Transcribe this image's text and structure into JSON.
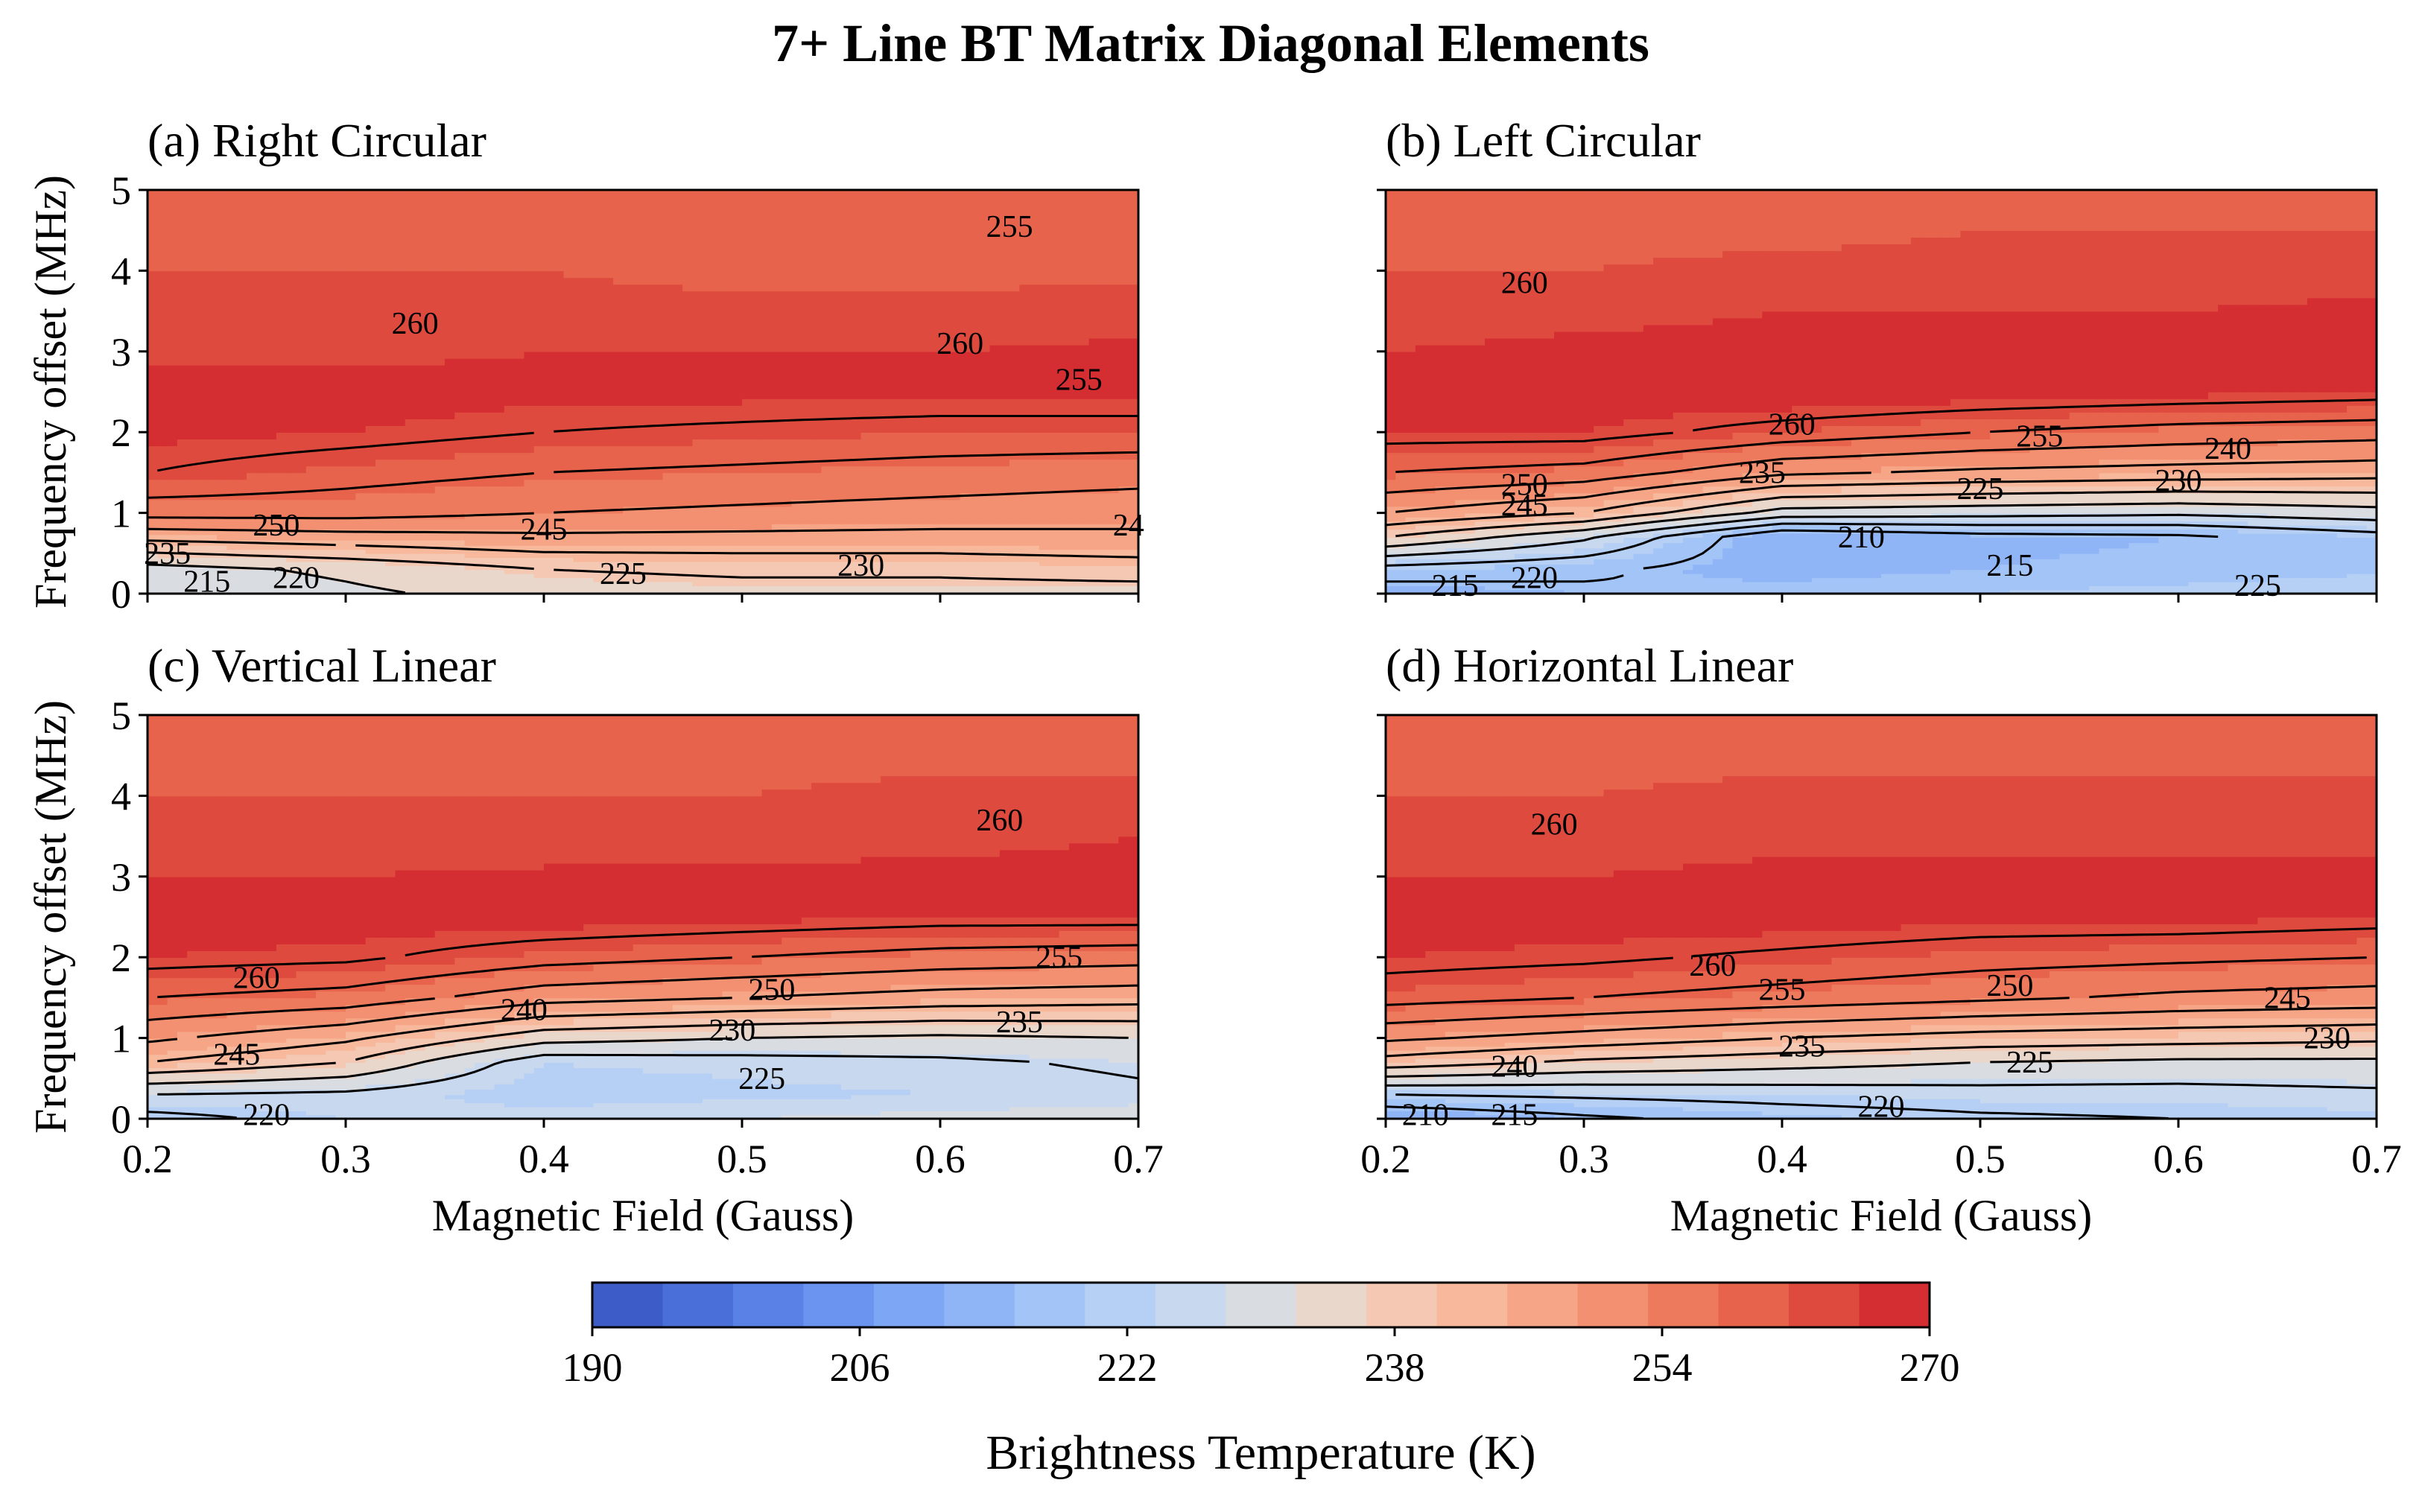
{
  "title": "7+ Line BT Matrix Diagonal Elements",
  "colors": {
    "levels": [
      "#3d5cc8",
      "#4a6fd8",
      "#5a82e6",
      "#6b94f0",
      "#7da6f5",
      "#90b5f7",
      "#a3c4f7",
      "#b6cff4",
      "#c8d8ee",
      "#d9dce1",
      "#ead7cc",
      "#f4c8b3",
      "#f7b89c",
      "#f6a586",
      "#f39071",
      "#ee7a5e",
      "#e7634c",
      "#de4a3e",
      "#d52e32"
    ],
    "contour": "#000000"
  },
  "chart_data": {
    "type": "heatmap",
    "xlabel": "Magnetic Field (Gauss)",
    "ylabel": "Frequency offset (MHz)",
    "xlim": [
      0.2,
      0.7
    ],
    "ylim": [
      0,
      5
    ],
    "x_ticks": [
      "0.2",
      "0.3",
      "0.4",
      "0.5",
      "0.6",
      "0.7"
    ],
    "y_ticks": [
      "0",
      "1",
      "2",
      "3",
      "4",
      "5"
    ],
    "colorbar": {
      "label": "Brightness Temperature (K)",
      "min": 190,
      "max": 270,
      "step": 4,
      "ticks": [
        "190",
        "206",
        "222",
        "238",
        "254",
        "270"
      ]
    },
    "panels": [
      {
        "title": "(a) Right Circular",
        "bands": [
          {
            "y": 0.0,
            "t": [
              226,
              229,
              232,
              233,
              233,
              233
            ]
          },
          {
            "y": 0.3,
            "t": [
              228,
              231,
              235,
              236,
              236,
              237
            ]
          },
          {
            "y": 0.6,
            "t": [
              238,
              240,
              242,
              242,
              242,
              243
            ]
          },
          {
            "y": 1.0,
            "t": [
              252,
              252,
              250,
              249,
              248,
              247
            ]
          },
          {
            "y": 1.5,
            "t": [
              260,
              257,
              255,
              254,
              253,
              252
            ]
          },
          {
            "y": 2.0,
            "t": [
              263,
              262,
              260,
              259,
              258,
              258
            ]
          },
          {
            "y": 2.5,
            "t": [
              264,
              264,
              263,
              263,
              263,
              263
            ]
          },
          {
            "y": 3.0,
            "t": [
              261,
              261,
              262,
              262,
              262,
              263
            ]
          },
          {
            "y": 3.5,
            "t": [
              259,
              259,
              259,
              259,
              259,
              260
            ]
          },
          {
            "y": 4.0,
            "t": [
              258,
              258,
              258,
              257,
              257,
              257
            ]
          },
          {
            "y": 4.5,
            "t": [
              256,
              256,
              256,
              256,
              256,
              255
            ]
          },
          {
            "y": 5.0,
            "t": [
              255,
              255,
              255,
              255,
              255,
              254
            ]
          }
        ],
        "labels": [
          "260",
          "260",
          "255",
          "250",
          "245",
          "225",
          "230",
          "215",
          "220",
          "235",
          "255",
          "24"
        ]
      },
      {
        "title": "(b) Left Circular",
        "bands": [
          {
            "y": 0.0,
            "t": [
              212,
              214,
              216,
              218,
              220,
              222
            ]
          },
          {
            "y": 0.3,
            "t": [
              218,
              216,
              212,
              214,
              215,
              217
            ]
          },
          {
            "y": 0.7,
            "t": [
              235,
              226,
              210,
              213,
              214,
              218
            ]
          },
          {
            "y": 1.0,
            "t": [
              245,
              240,
              228,
              227,
              226,
              228
            ]
          },
          {
            "y": 1.5,
            "t": [
              255,
              253,
              246,
              244,
              243,
              242
            ]
          },
          {
            "y": 2.0,
            "t": [
              262,
              262,
              258,
              255,
              253,
              252
            ]
          },
          {
            "y": 2.5,
            "t": [
              264,
              264,
              265,
              264,
              263,
              262
            ]
          },
          {
            "y": 3.0,
            "t": [
              262,
              263,
              263,
              264,
              264,
              264
            ]
          },
          {
            "y": 3.5,
            "t": [
              260,
              261,
              262,
              262,
              262,
              263
            ]
          },
          {
            "y": 4.0,
            "t": [
              258,
              258,
              259,
              259,
              260,
              260
            ]
          },
          {
            "y": 4.5,
            "t": [
              257,
              257,
              257,
              258,
              258,
              258
            ]
          },
          {
            "y": 5.0,
            "t": [
              256,
              256,
              256,
              257,
              257,
              257
            ]
          }
        ],
        "labels": [
          "260",
          "260",
          "255",
          "250",
          "245",
          "235",
          "225",
          "240",
          "230",
          "210",
          "215",
          "225",
          "215",
          "220"
        ]
      },
      {
        "title": "(c) Vertical Linear",
        "bands": [
          {
            "y": 0.0,
            "t": [
              218,
              222,
              224,
              226,
              228,
              229
            ]
          },
          {
            "y": 0.3,
            "t": [
              225,
              224,
              220,
              221,
              222,
              224
            ]
          },
          {
            "y": 0.7,
            "t": [
              240,
              235,
              222,
              223,
              224,
              226
            ]
          },
          {
            "y": 1.0,
            "t": [
              246,
              241,
              232,
              230,
              229,
              230
            ]
          },
          {
            "y": 1.5,
            "t": [
              255,
              253,
              247,
              245,
              243,
              242
            ]
          },
          {
            "y": 2.0,
            "t": [
              262,
              261,
              257,
              255,
              253,
              252
            ]
          },
          {
            "y": 2.5,
            "t": [
              264,
              264,
              264,
              263,
              262,
              262
            ]
          },
          {
            "y": 3.0,
            "t": [
              262,
              262,
              263,
              263,
              263,
              263
            ]
          },
          {
            "y": 3.5,
            "t": [
              260,
              259,
              259,
              260,
              261,
              262
            ]
          },
          {
            "y": 4.0,
            "t": [
              258,
              258,
              258,
              258,
              259,
              259
            ]
          },
          {
            "y": 4.5,
            "t": [
              256,
              256,
              257,
              257,
              257,
              257
            ]
          },
          {
            "y": 5.0,
            "t": [
              255,
              255,
              256,
              256,
              256,
              256
            ]
          }
        ],
        "labels": [
          "260",
          "260",
          "255",
          "250",
          "240",
          "235",
          "230",
          "245",
          "225",
          "220"
        ]
      },
      {
        "title": "(d) Horizontal Linear",
        "bands": [
          {
            "y": 0.0,
            "t": [
              210,
              214,
              217,
              219,
              220,
              221
            ]
          },
          {
            "y": 0.3,
            "t": [
              220,
              221,
              222,
              223,
              223,
              224
            ]
          },
          {
            "y": 0.7,
            "t": [
              238,
              234,
              232,
              230,
              229,
              229
            ]
          },
          {
            "y": 1.0,
            "t": [
              246,
              243,
              240,
              238,
              237,
              236
            ]
          },
          {
            "y": 1.5,
            "t": [
              257,
              255,
              253,
              251,
              249,
              248
            ]
          },
          {
            "y": 2.0,
            "t": [
              262,
              261,
              259,
              257,
              256,
              255
            ]
          },
          {
            "y": 2.5,
            "t": [
              264,
              264,
              264,
              263,
              263,
              262
            ]
          },
          {
            "y": 3.0,
            "t": [
              262,
              262,
              263,
              263,
              263,
              263
            ]
          },
          {
            "y": 3.5,
            "t": [
              260,
              260,
              261,
              261,
              261,
              261
            ]
          },
          {
            "y": 4.0,
            "t": [
              258,
              258,
              259,
              259,
              259,
              259
            ]
          },
          {
            "y": 4.5,
            "t": [
              257,
              257,
              257,
              257,
              257,
              257
            ]
          },
          {
            "y": 5.0,
            "t": [
              255,
              255,
              256,
              256,
              256,
              256
            ]
          }
        ],
        "labels": [
          "260",
          "260",
          "255",
          "250",
          "245",
          "230",
          "240",
          "235",
          "225",
          "210",
          "215",
          "220"
        ]
      }
    ]
  }
}
